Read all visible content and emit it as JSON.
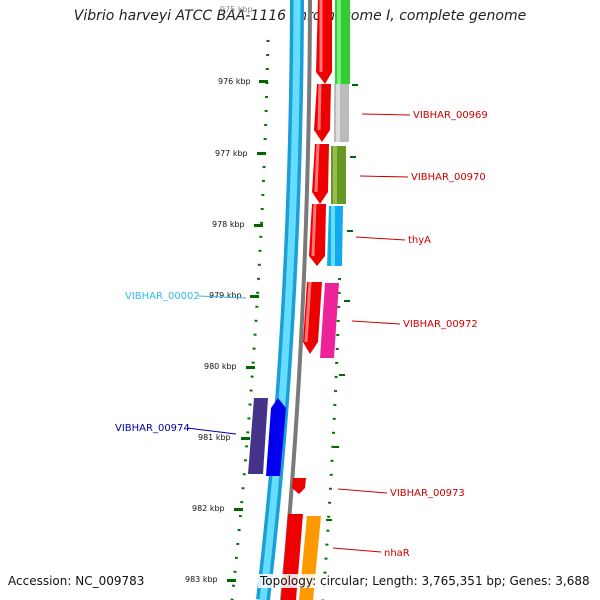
{
  "title": "Vibrio harveyi ATCC BAA-1116 chromosome I, complete genome",
  "accession": "Accession: NC_009783",
  "summary": "Topology: circular; Length: 3,765,351 bp; Genes: 3,688",
  "ticks": [
    {
      "label": "975 kbp"
    },
    {
      "label": "976 kbp"
    },
    {
      "label": "977 kbp"
    },
    {
      "label": "978 kbp"
    },
    {
      "label": "979 kbp"
    },
    {
      "label": "980 kbp"
    },
    {
      "label": "981 kbp"
    },
    {
      "label": "982 kbp"
    },
    {
      "label": "983 kbp"
    }
  ],
  "gene_labels": [
    {
      "text": "VIBHAR_00969",
      "color": "#cc0000"
    },
    {
      "text": "VIBHAR_00970",
      "color": "#cc0000"
    },
    {
      "text": "thyA",
      "color": "#cc0000"
    },
    {
      "text": "VIBHAR_00972",
      "color": "#cc0000"
    },
    {
      "text": "VIBHAR_00973",
      "color": "#cc0000"
    },
    {
      "text": "nhaR",
      "color": "#cc0000"
    },
    {
      "text": "VIBHAR_00002",
      "color": "#33bbee"
    },
    {
      "text": "VIBHAR_00974",
      "color": "#0000aa"
    }
  ],
  "colors": {
    "backbone_blue": "#33ccff",
    "backbone_grey": "#888888",
    "cds": "#ff0000",
    "tick": "#006600"
  }
}
